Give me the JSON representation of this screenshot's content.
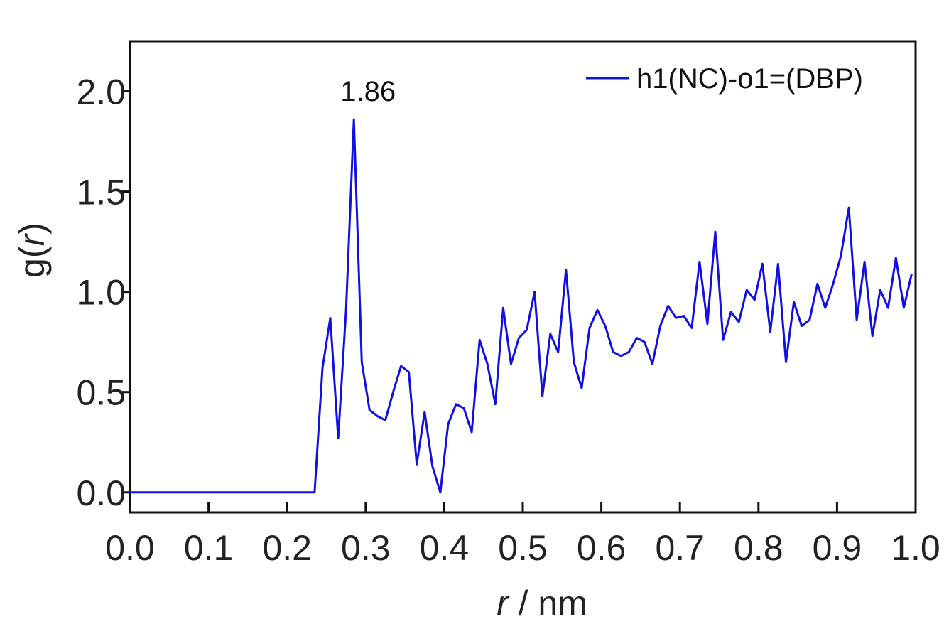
{
  "chart_data": {
    "type": "line",
    "title": "",
    "xlabel_var": "r",
    "xlabel_unit": " / nm",
    "ylabel_func": "g(",
    "ylabel_var": "r",
    "ylabel_close": ")",
    "xlim": [
      0.0,
      1.0
    ],
    "ylim": [
      -0.1,
      2.25
    ],
    "xticks": [
      0.0,
      0.1,
      0.2,
      0.3,
      0.4,
      0.5,
      0.6,
      0.7,
      0.8,
      0.9,
      1.0
    ],
    "xtick_labels": [
      "0.0",
      "0.1",
      "0.2",
      "0.3",
      "0.4",
      "0.5",
      "0.6",
      "0.7",
      "0.8",
      "0.9",
      "1.0"
    ],
    "yticks": [
      0.0,
      0.5,
      1.0,
      1.5,
      2.0
    ],
    "ytick_labels": [
      "0.0",
      "0.5",
      "1.0",
      "1.5",
      "2.0"
    ],
    "grid": false,
    "legend_position": "top-right",
    "annotation": {
      "text": "1.86",
      "x": 0.285,
      "y": 1.86
    },
    "series": [
      {
        "name": "h1(NC)-o1=(DBP)",
        "color": "#1010e0",
        "x": [
          0.0,
          0.235,
          0.245,
          0.255,
          0.265,
          0.275,
          0.285,
          0.295,
          0.305,
          0.315,
          0.325,
          0.335,
          0.345,
          0.355,
          0.365,
          0.375,
          0.385,
          0.395,
          0.405,
          0.415,
          0.425,
          0.435,
          0.445,
          0.455,
          0.465,
          0.475,
          0.485,
          0.495,
          0.505,
          0.515,
          0.525,
          0.535,
          0.545,
          0.555,
          0.565,
          0.575,
          0.585,
          0.595,
          0.605,
          0.615,
          0.625,
          0.635,
          0.645,
          0.655,
          0.665,
          0.675,
          0.685,
          0.695,
          0.705,
          0.715,
          0.725,
          0.735,
          0.745,
          0.755,
          0.765,
          0.775,
          0.785,
          0.795,
          0.805,
          0.815,
          0.825,
          0.835,
          0.845,
          0.855,
          0.865,
          0.875,
          0.885,
          0.895,
          0.905,
          0.915,
          0.925,
          0.935,
          0.945,
          0.955,
          0.965,
          0.975,
          0.985,
          0.995
        ],
        "values": [
          0.0,
          0.0,
          0.62,
          0.87,
          0.27,
          0.91,
          1.86,
          0.65,
          0.41,
          0.38,
          0.36,
          0.5,
          0.63,
          0.6,
          0.14,
          0.4,
          0.13,
          0.0,
          0.34,
          0.44,
          0.42,
          0.3,
          0.76,
          0.64,
          0.44,
          0.92,
          0.64,
          0.77,
          0.81,
          1.0,
          0.48,
          0.79,
          0.7,
          1.11,
          0.65,
          0.52,
          0.82,
          0.91,
          0.83,
          0.7,
          0.68,
          0.7,
          0.77,
          0.75,
          0.64,
          0.83,
          0.93,
          0.87,
          0.88,
          0.82,
          1.15,
          0.84,
          1.3,
          0.76,
          0.9,
          0.85,
          1.01,
          0.96,
          1.14,
          0.8,
          1.14,
          0.65,
          0.95,
          0.83,
          0.86,
          1.04,
          0.92,
          1.04,
          1.18,
          1.42,
          0.86,
          1.15,
          0.78,
          1.01,
          0.92,
          1.17,
          0.92,
          1.09
        ]
      }
    ]
  }
}
